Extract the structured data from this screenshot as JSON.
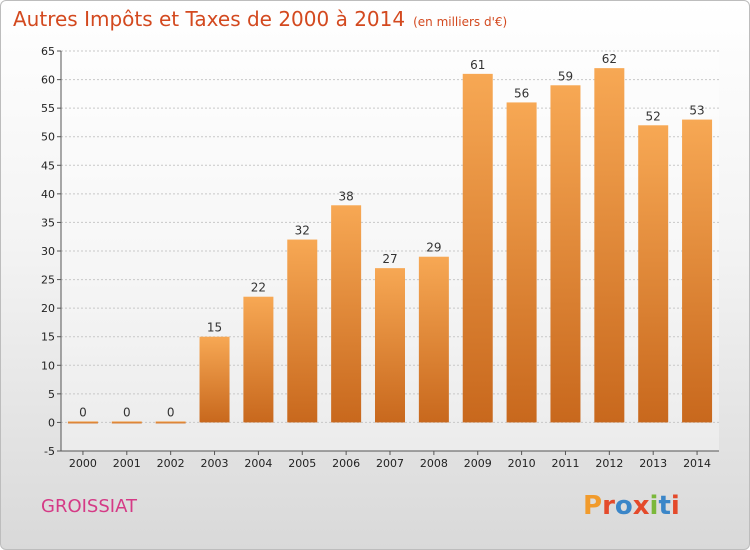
{
  "header": {
    "title": "Autres Impôts et Taxes de 2000 à 2014",
    "unit": "(en milliers d'€)"
  },
  "footer": {
    "commune": "GROISSIAT",
    "logo_text": "Proxiti"
  },
  "colors": {
    "title": "#d3491f",
    "commune": "#d53a86",
    "bar_top": "#f7a854",
    "bar_bottom": "#c8681d",
    "logo": [
      "#f19b2c",
      "#e44a2b",
      "#3b86c8",
      "#e44a2b",
      "#7bb83a",
      "#3b86c8",
      "#e44a2b"
    ]
  },
  "chart_data": {
    "type": "bar",
    "title": "Autres Impôts et Taxes de 2000 à 2014",
    "subtitle": "(en milliers d'€)",
    "xlabel": "",
    "ylabel": "",
    "categories": [
      "2000",
      "2001",
      "2002",
      "2003",
      "2004",
      "2005",
      "2006",
      "2007",
      "2008",
      "2009",
      "2010",
      "2011",
      "2012",
      "2013",
      "2014"
    ],
    "values": [
      0,
      0,
      0,
      15,
      22,
      32,
      38,
      27,
      29,
      61,
      56,
      59,
      62,
      52,
      53
    ],
    "ylim": [
      -5,
      65
    ],
    "yticks": [
      -5,
      0,
      5,
      10,
      15,
      20,
      25,
      30,
      35,
      40,
      45,
      50,
      55,
      60,
      65
    ],
    "grid": true
  }
}
